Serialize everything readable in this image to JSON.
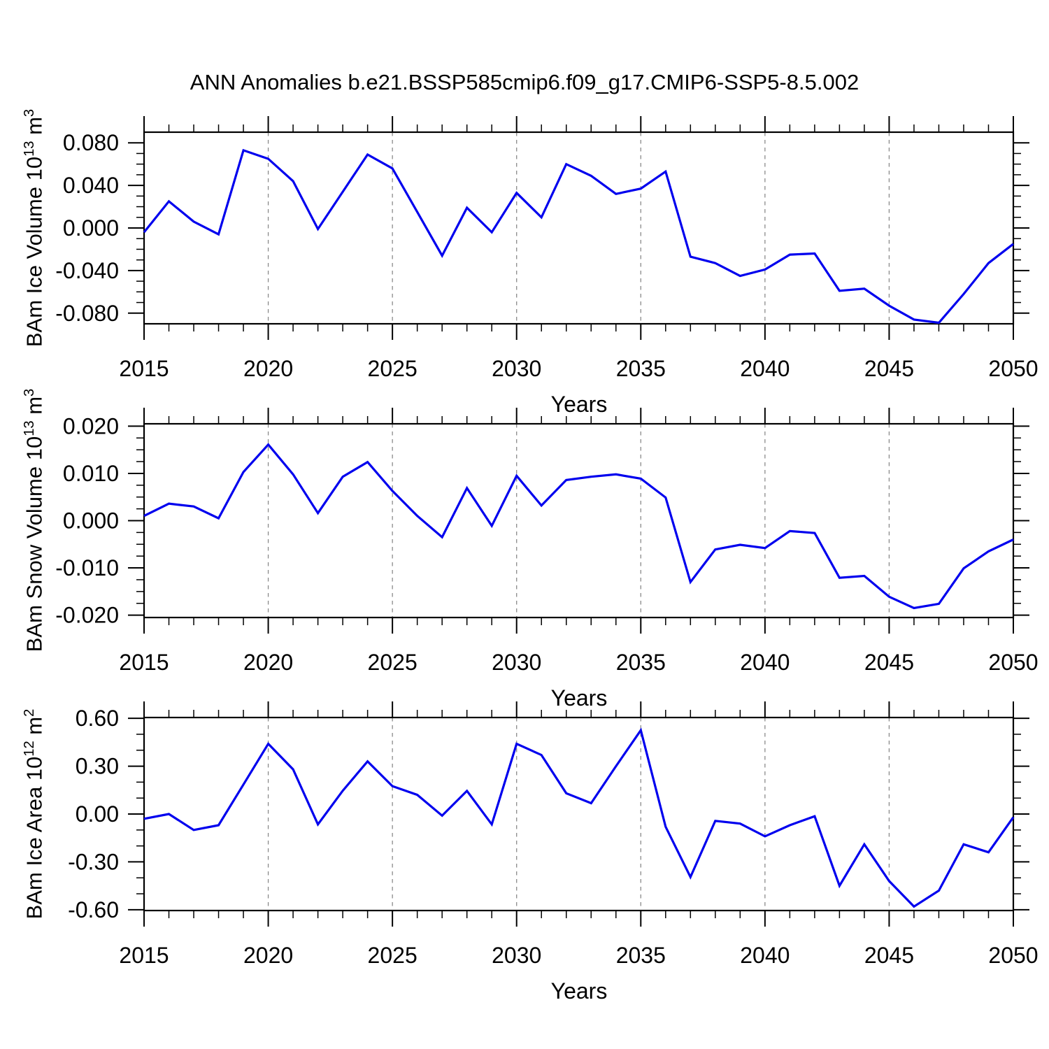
{
  "title": "ANN Anomalies b.e21.BSSP585cmip6.f09_g17.CMIP6-SSP5-8.5.002",
  "colors": {
    "line": "#0000ee",
    "grid": "#8a8a8a",
    "axis": "#000000",
    "text": "#000000",
    "background": "#ffffff"
  },
  "chart_data": [
    {
      "type": "line",
      "ylabel": "BAm Ice Volume 10^13 m^3",
      "xlabel": "Years",
      "x": [
        2015,
        2016,
        2017,
        2018,
        2019,
        2020,
        2021,
        2022,
        2023,
        2024,
        2025,
        2026,
        2027,
        2028,
        2029,
        2030,
        2031,
        2032,
        2033,
        2034,
        2035,
        2036,
        2037,
        2038,
        2039,
        2040,
        2041,
        2042,
        2043,
        2044,
        2045,
        2046,
        2047,
        2048,
        2049,
        2050
      ],
      "values": [
        -0.004,
        0.025,
        0.006,
        -0.006,
        0.073,
        0.065,
        0.044,
        -0.001,
        0.034,
        0.069,
        0.056,
        0.015,
        -0.026,
        0.019,
        -0.004,
        0.033,
        0.01,
        0.06,
        0.049,
        0.032,
        0.037,
        0.053,
        -0.027,
        -0.033,
        -0.045,
        -0.039,
        -0.025,
        -0.024,
        -0.059,
        -0.057,
        -0.073,
        -0.086,
        -0.089,
        -0.062,
        -0.033,
        -0.015
      ],
      "ylim": [
        -0.09,
        0.09
      ],
      "xlim": [
        2015,
        2050
      ],
      "ytick_values": [
        0.08,
        0.04,
        0.0,
        -0.04,
        -0.08
      ],
      "ytick_labels": [
        "0.080",
        "0.040",
        "0.000",
        "-0.040",
        "-0.080"
      ],
      "y_minor_step": 0.01,
      "xtick_values": [
        2015,
        2020,
        2025,
        2030,
        2035,
        2040,
        2045,
        2050
      ],
      "xtick_labels": [
        "2015",
        "2020",
        "2025",
        "2030",
        "2035",
        "2040",
        "2045",
        "2050"
      ],
      "x_minor_step": 1,
      "gridline_years": [
        2020,
        2025,
        2030,
        2035,
        2040,
        2045
      ],
      "grid": "vertical-dashed",
      "legend": "none"
    },
    {
      "type": "line",
      "ylabel": "BAm Snow Volume 10^13 m^3",
      "xlabel": "Years",
      "x": [
        2015,
        2016,
        2017,
        2018,
        2019,
        2020,
        2021,
        2022,
        2023,
        2024,
        2025,
        2026,
        2027,
        2028,
        2029,
        2030,
        2031,
        2032,
        2033,
        2034,
        2035,
        2036,
        2037,
        2038,
        2039,
        2040,
        2041,
        2042,
        2043,
        2044,
        2045,
        2046,
        2047,
        2048,
        2049,
        2050
      ],
      "values": [
        0.001,
        0.0036,
        0.003,
        0.0005,
        0.0103,
        0.0161,
        0.0098,
        0.0016,
        0.0093,
        0.0124,
        0.0063,
        0.001,
        -0.0035,
        0.0069,
        -0.0011,
        0.0095,
        0.0032,
        0.0086,
        0.0093,
        0.0098,
        0.0089,
        0.0049,
        -0.013,
        -0.0061,
        -0.0051,
        -0.0058,
        -0.0022,
        -0.0026,
        -0.0121,
        -0.0117,
        -0.0161,
        -0.0185,
        -0.0176,
        -0.0101,
        -0.0065,
        -0.004
      ],
      "ylim": [
        -0.0205,
        0.0205
      ],
      "xlim": [
        2015,
        2050
      ],
      "ytick_values": [
        0.02,
        0.01,
        0.0,
        -0.01,
        -0.02
      ],
      "ytick_labels": [
        "0.020",
        "0.010",
        "0.000",
        "-0.010",
        "-0.020"
      ],
      "y_minor_step": 0.0025,
      "xtick_values": [
        2015,
        2020,
        2025,
        2030,
        2035,
        2040,
        2045,
        2050
      ],
      "xtick_labels": [
        "2015",
        "2020",
        "2025",
        "2030",
        "2035",
        "2040",
        "2045",
        "2050"
      ],
      "x_minor_step": 1,
      "gridline_years": [
        2020,
        2025,
        2030,
        2035,
        2040,
        2045
      ],
      "grid": "vertical-dashed",
      "legend": "none"
    },
    {
      "type": "line",
      "ylabel": "BAm Ice Area 10^12 m^2",
      "xlabel": "Years",
      "x": [
        2015,
        2016,
        2017,
        2018,
        2019,
        2020,
        2021,
        2022,
        2023,
        2024,
        2025,
        2026,
        2027,
        2028,
        2029,
        2030,
        2031,
        2032,
        2033,
        2034,
        2035,
        2036,
        2037,
        2038,
        2039,
        2040,
        2041,
        2042,
        2043,
        2044,
        2045,
        2046,
        2047,
        2048,
        2049,
        2050
      ],
      "values": [
        -0.03,
        0.0,
        -0.1,
        -0.07,
        0.185,
        0.44,
        0.28,
        -0.065,
        0.146,
        0.33,
        0.175,
        0.12,
        -0.01,
        0.145,
        -0.065,
        0.44,
        0.37,
        0.13,
        0.068,
        0.3,
        0.525,
        -0.08,
        -0.395,
        -0.043,
        -0.06,
        -0.14,
        -0.07,
        -0.014,
        -0.45,
        -0.19,
        -0.42,
        -0.58,
        -0.48,
        -0.19,
        -0.24,
        -0.02
      ],
      "ylim": [
        -0.605,
        0.605
      ],
      "xlim": [
        2015,
        2050
      ],
      "ytick_values": [
        0.6,
        0.3,
        0.0,
        -0.3,
        -0.6
      ],
      "ytick_labels": [
        "0.60",
        "0.30",
        "0.00",
        "-0.30",
        "-0.60"
      ],
      "y_minor_step": 0.1,
      "xtick_values": [
        2015,
        2020,
        2025,
        2030,
        2035,
        2040,
        2045,
        2050
      ],
      "xtick_labels": [
        "2015",
        "2020",
        "2025",
        "2030",
        "2035",
        "2040",
        "2045",
        "2050"
      ],
      "x_minor_step": 1,
      "gridline_years": [
        2020,
        2025,
        2030,
        2035,
        2040,
        2045
      ],
      "grid": "vertical-dashed",
      "legend": "none"
    }
  ]
}
